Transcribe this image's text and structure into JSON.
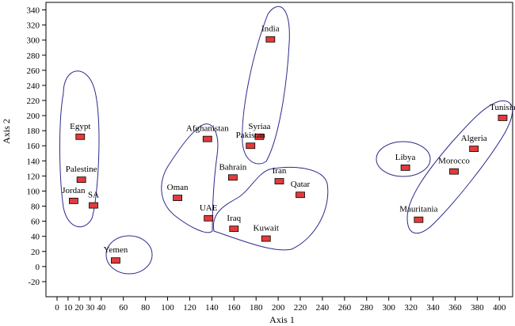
{
  "chart_data": {
    "type": "scatter",
    "xlabel": "Axis 1",
    "ylabel": "Axis 2",
    "xlim": [
      -10,
      412
    ],
    "ylim": [
      -40,
      350
    ],
    "x_ticks": [
      0,
      10,
      20,
      30,
      40,
      60,
      80,
      100,
      120,
      140,
      160,
      180,
      200,
      220,
      240,
      260,
      280,
      300,
      320,
      340,
      360,
      380,
      400
    ],
    "y_ticks": [
      -20,
      0,
      20,
      40,
      60,
      80,
      100,
      120,
      140,
      160,
      180,
      200,
      220,
      240,
      260,
      280,
      300,
      320,
      340
    ],
    "grid": false,
    "marker_color": "#e33b3b",
    "cluster_color": "#2b2b8c",
    "points": [
      {
        "label": "India",
        "x": 193,
        "y": 301
      },
      {
        "label": "Egypt",
        "x": 21,
        "y": 172
      },
      {
        "label": "Syriaa",
        "x": 183,
        "y": 172
      },
      {
        "label": "Afghanistan",
        "x": 136,
        "y": 169
      },
      {
        "label": "Pakistan",
        "x": 175,
        "y": 160
      },
      {
        "label": "Tunisia",
        "x": 403,
        "y": 197
      },
      {
        "label": "Algeria",
        "x": 377,
        "y": 156
      },
      {
        "label": "Libya",
        "x": 315,
        "y": 131
      },
      {
        "label": "Morocco",
        "x": 359,
        "y": 126
      },
      {
        "label": "Bahrain",
        "x": 159,
        "y": 118
      },
      {
        "label": "Palestine",
        "x": 22,
        "y": 115
      },
      {
        "label": "Iran",
        "x": 201,
        "y": 113
      },
      {
        "label": "Qatar",
        "x": 220,
        "y": 95
      },
      {
        "label": "Oman",
        "x": 109,
        "y": 91
      },
      {
        "label": "SA",
        "x": 33,
        "y": 81
      },
      {
        "label": "Jordan",
        "x": 15,
        "y": 87
      },
      {
        "label": "UAE",
        "x": 137,
        "y": 64
      },
      {
        "label": "Mauritania",
        "x": 327,
        "y": 62
      },
      {
        "label": "Iraq",
        "x": 160,
        "y": 50
      },
      {
        "label": "Kuwait",
        "x": 189,
        "y": 37
      },
      {
        "label": "Yemen",
        "x": 53,
        "y": 8
      }
    ]
  }
}
